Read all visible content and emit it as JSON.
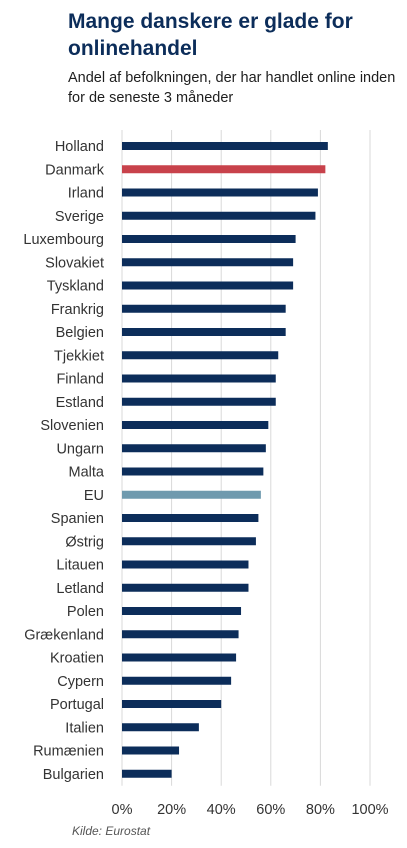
{
  "title": "Mange danskere er glade for onlinehandel",
  "subtitle": "Andel af befolkningen, der har handlet online inden for de seneste 3 måneder",
  "source": "Kilde: Eurostat",
  "colors": {
    "default_bar": "#0c2d5a",
    "highlight_bar": "#c8424b",
    "eu_bar": "#6f9aae",
    "grid": "#d9d9d9",
    "label": "#333333"
  },
  "chart_data": {
    "type": "bar",
    "orientation": "horizontal",
    "title": "",
    "xlabel": "",
    "ylabel": "",
    "grid": true,
    "xlim": [
      0,
      100
    ],
    "x_ticks": [
      0,
      20,
      40,
      60,
      80,
      100
    ],
    "x_tick_labels": [
      "0%",
      "20%",
      "40%",
      "60%",
      "80%",
      "100%"
    ],
    "categories": [
      "Holland",
      "Danmark",
      "Irland",
      "Sverige",
      "Luxembourg",
      "Slovakiet",
      "Tyskland",
      "Frankrig",
      "Belgien",
      "Tjekkiet",
      "Finland",
      "Estland",
      "Slovenien",
      "Ungarn",
      "Malta",
      "EU",
      "Spanien",
      "Østrig",
      "Litauen",
      "Letland",
      "Polen",
      "Grækenland",
      "Kroatien",
      "Cypern",
      "Portugal",
      "Italien",
      "Rumænien",
      "Bulgarien"
    ],
    "values": [
      83,
      82,
      79,
      78,
      70,
      69,
      69,
      66,
      66,
      63,
      62,
      62,
      59,
      58,
      57,
      56,
      55,
      54,
      51,
      51,
      48,
      47,
      46,
      44,
      40,
      31,
      23,
      20
    ],
    "highlight": {
      "Danmark": "highlight_bar",
      "EU": "eu_bar"
    }
  }
}
